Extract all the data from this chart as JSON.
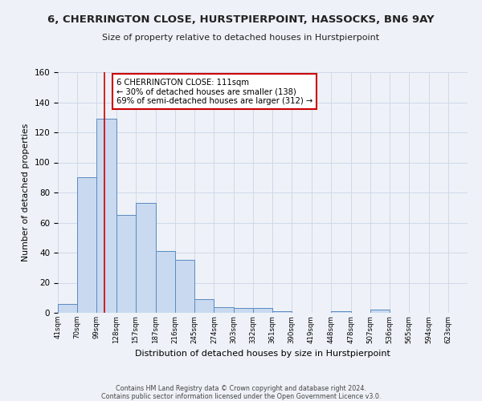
{
  "title": "6, CHERRINGTON CLOSE, HURSTPIERPOINT, HASSOCKS, BN6 9AY",
  "subtitle": "Size of property relative to detached houses in Hurstpierpoint",
  "xlabel": "Distribution of detached houses by size in Hurstpierpoint",
  "ylabel": "Number of detached properties",
  "footer_line1": "Contains HM Land Registry data © Crown copyright and database right 2024.",
  "footer_line2": "Contains public sector information licensed under the Open Government Licence v3.0.",
  "bin_labels": [
    "41sqm",
    "70sqm",
    "99sqm",
    "128sqm",
    "157sqm",
    "187sqm",
    "216sqm",
    "245sqm",
    "274sqm",
    "303sqm",
    "332sqm",
    "361sqm",
    "390sqm",
    "419sqm",
    "448sqm",
    "478sqm",
    "507sqm",
    "536sqm",
    "565sqm",
    "594sqm",
    "623sqm"
  ],
  "bar_values": [
    6,
    90,
    129,
    65,
    73,
    41,
    35,
    9,
    4,
    3,
    3,
    1,
    0,
    0,
    1,
    0,
    2,
    0,
    0,
    0,
    0
  ],
  "bar_color": "#c8d9f0",
  "bar_edge_color": "#5b8abf",
  "vline_x": 111,
  "vline_color": "#cc0000",
  "annotation_line1": "6 CHERRINGTON CLOSE: 111sqm",
  "annotation_line2": "← 30% of detached houses are smaller (138)",
  "annotation_line3": "69% of semi-detached houses are larger (312) →",
  "annotation_box_edgecolor": "#cc0000",
  "annotation_box_facecolor": "#ffffff",
  "ylim": [
    0,
    160
  ],
  "yticks": [
    0,
    20,
    40,
    60,
    80,
    100,
    120,
    140,
    160
  ],
  "grid_color": "#d0d8e8",
  "background_color": "#eef2f8",
  "bin_edges": [
    41,
    70,
    99,
    128,
    157,
    187,
    216,
    245,
    274,
    303,
    332,
    361,
    390,
    419,
    448,
    478,
    507,
    536,
    565,
    594,
    623,
    652
  ]
}
